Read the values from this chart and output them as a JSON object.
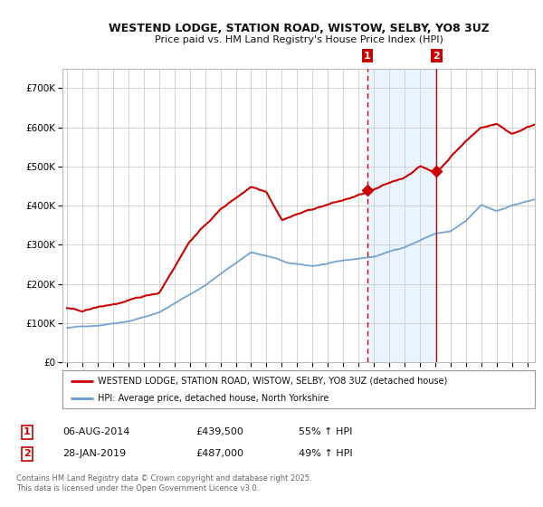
{
  "title": "WESTEND LODGE, STATION ROAD, WISTOW, SELBY, YO8 3UZ",
  "subtitle": "Price paid vs. HM Land Registry's House Price Index (HPI)",
  "legend_line1": "WESTEND LODGE, STATION ROAD, WISTOW, SELBY, YO8 3UZ (detached house)",
  "legend_line2": "HPI: Average price, detached house, North Yorkshire",
  "annotation1_label": "1",
  "annotation1_date": "06-AUG-2014",
  "annotation1_price": "£439,500",
  "annotation1_hpi": "55% ↑ HPI",
  "annotation2_label": "2",
  "annotation2_date": "28-JAN-2019",
  "annotation2_price": "£487,000",
  "annotation2_hpi": "49% ↑ HPI",
  "footer": "Contains HM Land Registry data © Crown copyright and database right 2025.\nThis data is licensed under the Open Government Licence v3.0.",
  "red_color": "#cc0000",
  "blue_color": "#6699cc",
  "shade_color": "#ddeeff",
  "plot_bg": "#ffffff",
  "fig_bg": "#ffffff",
  "grid_color": "#cccccc",
  "marker1_x": 2014.58,
  "marker1_y": 439500,
  "marker2_x": 2019.08,
  "marker2_y": 487000,
  "vline1_x": 2014.58,
  "vline2_x": 2019.08,
  "ylim": [
    0,
    750000
  ],
  "xlim": [
    1994.7,
    2025.5
  ]
}
